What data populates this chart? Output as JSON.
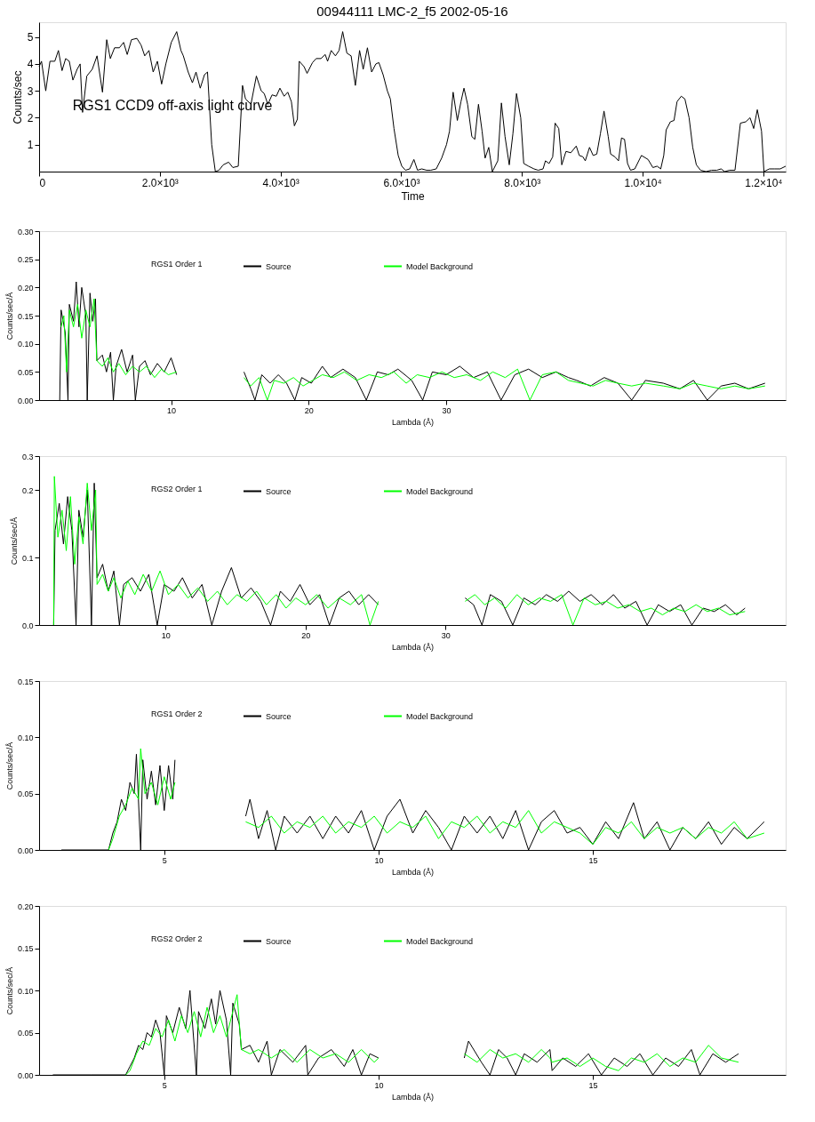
{
  "chart_data": [
    {
      "type": "line",
      "title": "00944111 LMC-2_f5 2002-05-16",
      "xlabel": "Time",
      "ylabel": "Counts/sec",
      "annotations": [
        "RGS1 CCD9 off-axis light curve"
      ],
      "xlim": [
        0,
        12370
      ],
      "ylim": [
        0,
        5.55
      ],
      "xticks": [
        0,
        {
          "value": 2000,
          "label": "2.0×10³"
        },
        {
          "value": 4000,
          "label": "4.0×10³"
        },
        {
          "value": 6000,
          "label": "6.0×10³"
        },
        {
          "value": 8000,
          "label": "8.0×10³"
        },
        {
          "value": 10000,
          "label": "1.0×10⁴"
        },
        {
          "value": 12000,
          "label": "1.2×10⁴"
        }
      ],
      "yticks": [
        1,
        2,
        3,
        4,
        5
      ],
      "grid": false,
      "line_style": "solid",
      "marker": "none",
      "series": [
        {
          "color": "#000000",
          "x": [
            0,
            40,
            110,
            180,
            260,
            320,
            380,
            440,
            500,
            560,
            630,
            680,
            720,
            790,
            880,
            960,
            1050,
            1120,
            1180,
            1250,
            1330,
            1400,
            1460,
            1530,
            1620,
            1690,
            1750,
            1820,
            1890,
            1960,
            2030,
            2100,
            2190,
            2280,
            2350,
            2390,
            2470,
            2540,
            2600,
            2670,
            2740,
            2790,
            2860,
            2920,
            2980,
            3050,
            3140,
            3210,
            3300,
            3370,
            3420,
            3510,
            3600,
            3680,
            3730,
            3790,
            3860,
            3930,
            3990,
            4060,
            4120,
            4180,
            4230,
            4280,
            4310,
            4390,
            4440,
            4530,
            4590,
            4670,
            4740,
            4780,
            4840,
            4910,
            4970,
            5030,
            5100,
            5170,
            5240,
            5310,
            5370,
            5440,
            5510,
            5580,
            5630,
            5700,
            5770,
            5820,
            5880,
            5950,
            6010,
            6070,
            6140,
            6210,
            6270,
            6340,
            6420,
            6490,
            6580,
            6670,
            6750,
            6800,
            6860,
            6930,
            6990,
            7040,
            7100,
            7170,
            7220,
            7280,
            7340,
            7390,
            7450,
            7510,
            7600,
            7660,
            7720,
            7790,
            7850,
            7910,
            7980,
            8030,
            8110,
            8200,
            8270,
            8350,
            8390,
            8450,
            8510,
            8550,
            8610,
            8660,
            8730,
            8810,
            8900,
            8950,
            9010,
            9050,
            9120,
            9180,
            9240,
            9300,
            9360,
            9430,
            9470,
            9540,
            9600,
            9650,
            9700,
            9750,
            9800,
            9870,
            9980,
            10090,
            10170,
            10240,
            10300,
            10350,
            10390,
            10460,
            10520,
            10570,
            10640,
            10700,
            10770,
            10830,
            10890,
            10960,
            11050,
            11140,
            11230,
            11300,
            11360,
            11440,
            11530,
            11620,
            11710,
            11780,
            11840,
            11900,
            11970,
            12010,
            12100,
            12190,
            12280,
            12370
          ],
          "values": [
            3.9,
            4.1,
            3.0,
            4.1,
            4.1,
            4.5,
            3.75,
            4.2,
            4.1,
            3.4,
            3.8,
            4.0,
            2.2,
            3.55,
            3.8,
            4.3,
            2.95,
            4.9,
            4.2,
            4.6,
            4.6,
            4.8,
            4.35,
            4.9,
            4.95,
            4.7,
            4.3,
            4.5,
            3.7,
            4.1,
            3.25,
            4.0,
            4.8,
            5.2,
            4.5,
            4.3,
            3.7,
            3.3,
            3.7,
            3.1,
            3.6,
            3.7,
            1.0,
            0.0,
            0.05,
            0.25,
            0.35,
            0.15,
            0.2,
            3.2,
            2.7,
            2.5,
            3.55,
            3.0,
            2.9,
            2.5,
            2.85,
            2.8,
            3.1,
            2.8,
            2.95,
            2.6,
            1.7,
            1.95,
            4.1,
            3.9,
            3.65,
            4.05,
            4.2,
            4.2,
            4.35,
            4.1,
            4.5,
            4.3,
            4.5,
            5.2,
            4.4,
            4.3,
            3.2,
            4.5,
            3.8,
            4.6,
            3.7,
            4.0,
            4.05,
            3.6,
            3.0,
            2.7,
            1.6,
            0.6,
            0.2,
            0.05,
            0.1,
            0.45,
            0.05,
            0.1,
            0.05,
            0.05,
            0.1,
            0.5,
            1.0,
            1.5,
            2.95,
            1.9,
            2.6,
            3.1,
            2.5,
            1.3,
            1.2,
            2.5,
            1.5,
            0.5,
            0.9,
            0.0,
            0.4,
            2.55,
            1.3,
            0.25,
            1.4,
            2.9,
            2.0,
            0.3,
            0.2,
            0.1,
            0.05,
            0.1,
            0.4,
            0.3,
            0.55,
            1.8,
            1.6,
            0.25,
            0.75,
            0.7,
            0.95,
            0.6,
            0.55,
            0.4,
            0.9,
            0.6,
            0.65,
            1.4,
            2.25,
            1.3,
            0.65,
            0.55,
            0.4,
            1.25,
            1.2,
            0.3,
            0.05,
            0.1,
            0.6,
            0.45,
            0.15,
            0.2,
            0.1,
            0.6,
            1.55,
            1.85,
            1.9,
            2.6,
            2.8,
            2.7,
            2.0,
            0.9,
            0.25,
            0.05,
            0.0,
            0.05,
            0.05,
            0.1,
            0.0,
            0.05,
            0.05,
            1.8,
            1.85,
            2.0,
            1.6,
            2.3,
            1.5,
            0.0,
            0.1,
            0.1,
            0.1,
            0.2
          ]
        }
      ]
    },
    {
      "type": "line",
      "legend_title": "RGS1 Order 1",
      "xlabel": "Lambda (Å)",
      "ylabel": "Counts/sec/Å",
      "legend": "top",
      "xlim": [
        0.4,
        54.7
      ],
      "ylim": [
        0,
        0.3
      ],
      "xticks": [
        10,
        20,
        30
      ],
      "yticks": [
        {
          "value": 0,
          "label": "0.00"
        },
        {
          "value": 0.05,
          "label": "0.05"
        },
        {
          "value": 0.1,
          "label": "0.10"
        },
        {
          "value": 0.15,
          "label": "0.15"
        },
        {
          "value": 0.2,
          "label": "0.20"
        },
        {
          "value": 0.25,
          "label": "0.25"
        },
        {
          "value": 0.3,
          "label": "0.30"
        }
      ],
      "grid": false,
      "series": [
        {
          "name": "Source",
          "color": "#000000",
          "x": [
            1.9,
            2.0,
            2.3,
            2.5,
            2.6,
            2.9,
            3.1,
            3.3,
            3.5,
            3.8,
            3.9,
            4.1,
            4.3,
            4.5,
            4.6,
            5.0,
            5.3,
            5.6,
            5.8,
            6.0,
            6.4,
            6.8,
            7.2,
            7.4,
            7.7,
            8.1,
            8.5,
            9.0,
            9.5,
            10.0,
            10.4,
            10.5,
            15.3,
            15.8,
            16.1,
            16.6,
            17.2,
            17.8,
            18.4,
            19.0,
            19.5,
            20.2,
            21.0,
            21.6,
            22.5,
            23.4,
            24.2,
            25.0,
            25.8,
            26.5,
            27.5,
            28.3,
            29.0,
            30.0,
            31.0,
            32.0,
            33.0,
            34.0,
            35.0,
            36.0,
            37.0,
            38.0,
            38.9,
            39.5,
            40.5,
            41.5,
            42.5,
            43.5,
            44.5,
            45.8,
            47.0,
            48.0,
            49.0,
            50.0,
            51.0,
            52.0,
            53.2
          ],
          "values": [
            0,
            0.16,
            0.12,
            0.0,
            0.17,
            0.14,
            0.21,
            0.13,
            0.2,
            0.15,
            0.0,
            0.19,
            0.14,
            0.18,
            0.07,
            0.08,
            0.05,
            0.085,
            0.0,
            0.06,
            0.09,
            0.05,
            0.08,
            0.0,
            0.06,
            0.07,
            0.045,
            0.065,
            0.05,
            0.075,
            0.045,
            null,
            0.05,
            0.02,
            0.0,
            0.045,
            0.03,
            0.045,
            0.03,
            0.0,
            0.04,
            0.03,
            0.06,
            0.04,
            0.055,
            0.04,
            0.0,
            0.05,
            0.045,
            0.055,
            0.035,
            0.0,
            0.05,
            0.045,
            0.06,
            0.04,
            0.05,
            0.0,
            0.045,
            0.055,
            0.04,
            0.05,
            0.04,
            0.035,
            0.025,
            0.04,
            0.03,
            0.0,
            0.035,
            0.03,
            0.02,
            0.035,
            0.0,
            0.025,
            0.03,
            0.02,
            0.03
          ]
        },
        {
          "name": "Model Background",
          "color": "#00ff00",
          "x": [
            2.0,
            2.2,
            2.4,
            2.6,
            2.9,
            3.2,
            3.5,
            3.8,
            4.1,
            4.4,
            4.6,
            5.0,
            5.4,
            5.8,
            6.2,
            6.7,
            7.2,
            7.7,
            8.2,
            8.8,
            9.3,
            9.8,
            10.4,
            10.5,
            15.3,
            15.8,
            16.4,
            17.0,
            17.5,
            18.2,
            18.9,
            19.6,
            20.3,
            21.0,
            21.8,
            22.6,
            23.5,
            24.4,
            25.3,
            26.2,
            27.1,
            27.9,
            28.8,
            29.7,
            30.6,
            31.5,
            32.5,
            33.4,
            34.3,
            35.2,
            36.1,
            37.0,
            38.0,
            38.9,
            39.8,
            40.7,
            41.6,
            42.5,
            43.5,
            44.5,
            45.8,
            47.0,
            48.0,
            49.0,
            50.0,
            51.0,
            52.0,
            53.2
          ],
          "values": [
            0.13,
            0.15,
            0.05,
            0.16,
            0.13,
            0.17,
            0.11,
            0.16,
            0.13,
            0.18,
            0.07,
            0.06,
            0.075,
            0.05,
            0.065,
            0.045,
            0.06,
            0.05,
            0.06,
            0.04,
            0.055,
            0.045,
            0.05,
            null,
            0.04,
            0.025,
            0.04,
            0.0,
            0.035,
            0.03,
            0.04,
            0.025,
            0.035,
            0.045,
            0.04,
            0.05,
            0.035,
            0.045,
            0.04,
            0.05,
            0.03,
            0.045,
            0.04,
            0.05,
            0.04,
            0.045,
            0.035,
            0.05,
            0.04,
            0.055,
            0.0,
            0.045,
            0.05,
            0.035,
            0.03,
            0.025,
            0.035,
            0.03,
            0.025,
            0.03,
            0.025,
            0.02,
            0.03,
            0.025,
            0.02,
            0.025,
            0.02,
            0.025
          ]
        }
      ]
    },
    {
      "type": "line",
      "legend_title": "RGS2 Order 1",
      "xlabel": "Lambda (Å)",
      "ylabel": "Counts/sec/Å",
      "legend": "top",
      "xlim": [
        0.96,
        54.3
      ],
      "ylim": [
        0,
        0.25
      ],
      "xticks": [
        10,
        20,
        30
      ],
      "yticks": [
        {
          "value": 0,
          "label": "0.0"
        },
        {
          "value": 0.1,
          "label": "0.1"
        },
        {
          "value": 0.2,
          "label": "0.2"
        },
        {
          "value": 0.25,
          "label": "0.3"
        }
      ],
      "grid": false,
      "series": [
        {
          "name": "Source",
          "color": "#000000",
          "x": [
            2.0,
            2.1,
            2.4,
            2.7,
            3.0,
            3.3,
            3.6,
            3.8,
            4.1,
            4.4,
            4.7,
            4.9,
            5.1,
            5.5,
            5.9,
            6.3,
            6.7,
            7.0,
            7.6,
            8.2,
            8.8,
            9.4,
            9.9,
            10.6,
            11.2,
            11.9,
            12.6,
            13.3,
            14.0,
            14.7,
            15.4,
            16.1,
            16.8,
            17.5,
            18.2,
            18.9,
            19.6,
            20.3,
            21.0,
            21.7,
            22.4,
            23.1,
            23.8,
            24.5,
            25.2,
            25.3,
            31.4,
            32.0,
            32.6,
            33.2,
            34.0,
            34.8,
            35.6,
            36.4,
            37.2,
            38.0,
            38.8,
            39.6,
            40.4,
            41.2,
            42.0,
            42.8,
            43.6,
            44.4,
            45.2,
            46.0,
            46.8,
            47.6,
            48.4,
            49.2,
            50.0,
            50.8,
            51.4
          ],
          "values": [
            0.0,
            0.14,
            0.18,
            0.12,
            0.19,
            0.14,
            0.0,
            0.17,
            0.13,
            0.2,
            0.0,
            0.21,
            0.07,
            0.09,
            0.05,
            0.08,
            0.0,
            0.06,
            0.07,
            0.05,
            0.075,
            0.0,
            0.06,
            0.05,
            0.07,
            0.04,
            0.06,
            0.0,
            0.05,
            0.085,
            0.04,
            0.055,
            0.035,
            0.0,
            0.05,
            0.035,
            0.06,
            0.03,
            0.045,
            0.0,
            0.04,
            0.05,
            0.03,
            0.045,
            0.03,
            null,
            0.04,
            0.03,
            0.0,
            0.045,
            0.035,
            0.0,
            0.04,
            0.03,
            0.045,
            0.035,
            0.05,
            0.035,
            0.045,
            0.03,
            0.045,
            0.025,
            0.035,
            0.0,
            0.03,
            0.02,
            0.03,
            0.0,
            0.025,
            0.02,
            0.03,
            0.015,
            0.025
          ]
        },
        {
          "name": "Model Background",
          "color": "#00ff00",
          "x": [
            2.0,
            2.05,
            2.3,
            2.6,
            2.9,
            3.2,
            3.5,
            3.8,
            4.1,
            4.4,
            4.7,
            5.0,
            5.1,
            5.5,
            5.9,
            6.3,
            6.8,
            7.3,
            7.8,
            8.4,
            9.0,
            9.6,
            10.2,
            10.9,
            11.6,
            12.3,
            13.0,
            13.7,
            14.4,
            15.1,
            15.8,
            16.5,
            17.2,
            17.9,
            18.6,
            19.3,
            20.0,
            20.8,
            21.6,
            22.4,
            23.2,
            24.0,
            24.6,
            25.2,
            25.3,
            31.4,
            32.1,
            32.8,
            33.5,
            34.3,
            35.1,
            35.9,
            36.7,
            37.5,
            38.3,
            39.1,
            39.9,
            40.7,
            41.5,
            42.3,
            43.1,
            43.9,
            44.7,
            45.5,
            46.3,
            47.1,
            47.9,
            48.7,
            49.5,
            50.3,
            51.4
          ],
          "values": [
            0.0,
            0.22,
            0.13,
            0.17,
            0.11,
            0.19,
            0.09,
            0.16,
            0.12,
            0.21,
            0.14,
            0.2,
            0.06,
            0.075,
            0.05,
            0.07,
            0.04,
            0.065,
            0.045,
            0.075,
            0.05,
            0.08,
            0.045,
            0.06,
            0.04,
            0.055,
            0.035,
            0.05,
            0.03,
            0.045,
            0.035,
            0.05,
            0.03,
            0.045,
            0.025,
            0.04,
            0.03,
            0.045,
            0.025,
            0.04,
            0.03,
            0.045,
            0.0,
            0.035,
            null,
            0.035,
            0.045,
            0.03,
            0.04,
            0.025,
            0.045,
            0.03,
            0.04,
            0.035,
            0.045,
            0.0,
            0.04,
            0.03,
            0.035,
            0.025,
            0.03,
            0.02,
            0.025,
            0.015,
            0.025,
            0.02,
            0.03,
            0.02,
            0.025,
            0.015,
            0.02
          ]
        }
      ]
    },
    {
      "type": "line",
      "legend_title": "RGS1 Order 2",
      "xlabel": "Lambda (Å)",
      "ylabel": "Counts/sec/Å",
      "legend": "top",
      "xlim": [
        2.08,
        19.5
      ],
      "ylim": [
        0,
        0.15
      ],
      "xticks": [
        5,
        10,
        15
      ],
      "yticks": [
        {
          "value": 0,
          "label": "0.00"
        },
        {
          "value": 0.05,
          "label": "0.05"
        },
        {
          "value": 0.1,
          "label": "0.10"
        },
        {
          "value": 0.15,
          "label": "0.15"
        }
      ],
      "grid": false,
      "series": [
        {
          "name": "Source",
          "color": "#000000",
          "x": [
            2.6,
            3.2,
            3.7,
            3.8,
            3.9,
            4.0,
            4.1,
            4.2,
            4.3,
            4.35,
            4.45,
            4.5,
            4.6,
            4.7,
            4.8,
            4.9,
            5.0,
            5.1,
            5.2,
            5.25,
            5.26,
            6.9,
            7.0,
            7.2,
            7.4,
            7.6,
            7.8,
            8.1,
            8.4,
            8.7,
            9.0,
            9.3,
            9.6,
            9.9,
            10.2,
            10.5,
            10.8,
            11.1,
            11.4,
            11.7,
            12.0,
            12.3,
            12.6,
            12.9,
            13.2,
            13.5,
            13.8,
            14.1,
            14.4,
            14.7,
            15.0,
            15.3,
            15.6,
            15.95,
            16.2,
            16.5,
            16.8,
            17.1,
            17.4,
            17.7,
            18.0,
            18.3,
            18.6,
            19.0
          ],
          "values": [
            0,
            0,
            0,
            0.015,
            0.025,
            0.045,
            0.035,
            0.06,
            0.05,
            0.085,
            0.0,
            0.08,
            0.045,
            0.07,
            0.04,
            0.075,
            0.035,
            0.075,
            0.045,
            0.08,
            null,
            0.03,
            0.045,
            0.01,
            0.035,
            0.0,
            0.03,
            0.015,
            0.03,
            0.01,
            0.03,
            0.015,
            0.035,
            0.0,
            0.03,
            0.045,
            0.015,
            0.035,
            0.02,
            0.0,
            0.03,
            0.015,
            0.03,
            0.01,
            0.035,
            0.0,
            0.025,
            0.035,
            0.015,
            0.02,
            0.005,
            0.025,
            0.01,
            0.042,
            0.01,
            0.025,
            0.0,
            0.02,
            0.01,
            0.025,
            0.005,
            0.02,
            0.01,
            0.025
          ]
        },
        {
          "name": "Model Background",
          "color": "#00ff00",
          "x": [
            3.7,
            3.8,
            3.95,
            4.1,
            4.25,
            4.4,
            4.45,
            4.55,
            4.7,
            4.85,
            5.0,
            5.15,
            5.25,
            5.26,
            6.9,
            7.2,
            7.5,
            7.8,
            8.1,
            8.4,
            8.7,
            9.0,
            9.3,
            9.6,
            9.9,
            10.2,
            10.5,
            10.8,
            11.1,
            11.4,
            11.7,
            12.0,
            12.3,
            12.6,
            12.9,
            13.2,
            13.5,
            13.8,
            14.1,
            14.4,
            14.7,
            15.0,
            15.3,
            15.6,
            15.9,
            16.2,
            16.5,
            16.8,
            17.1,
            17.4,
            17.7,
            18.0,
            18.3,
            18.6,
            19.0
          ],
          "values": [
            0,
            0.01,
            0.03,
            0.04,
            0.055,
            0.045,
            0.09,
            0.05,
            0.06,
            0.04,
            0.065,
            0.045,
            0.06,
            null,
            0.025,
            0.02,
            0.03,
            0.015,
            0.025,
            0.02,
            0.03,
            0.015,
            0.025,
            0.02,
            0.03,
            0.015,
            0.025,
            0.02,
            0.03,
            0.01,
            0.025,
            0.02,
            0.03,
            0.015,
            0.025,
            0.02,
            0.035,
            0.015,
            0.025,
            0.02,
            0.015,
            0.005,
            0.02,
            0.015,
            0.025,
            0.01,
            0.02,
            0.015,
            0.02,
            0.01,
            0.02,
            0.015,
            0.025,
            0.01,
            0.015
          ]
        }
      ]
    },
    {
      "type": "line",
      "legend_title": "RGS2 Order 2",
      "xlabel": "Lambda (Å)",
      "ylabel": "Counts/sec/Å",
      "legend": "top",
      "xlim": [
        2.08,
        19.5
      ],
      "ylim": [
        0,
        0.2
      ],
      "xticks": [
        5,
        10,
        15
      ],
      "yticks": [
        {
          "value": 0,
          "label": "0.00"
        },
        {
          "value": 0.05,
          "label": "0.05"
        },
        {
          "value": 0.1,
          "label": "0.10"
        },
        {
          "value": 0.15,
          "label": "0.15"
        },
        {
          "value": 0.2,
          "label": "0.20"
        }
      ],
      "grid": false,
      "series": [
        {
          "name": "Source",
          "color": "#000000",
          "x": [
            2.4,
            3.3,
            4.1,
            4.2,
            4.3,
            4.4,
            4.5,
            4.6,
            4.7,
            4.8,
            4.9,
            5.0,
            5.05,
            5.2,
            5.35,
            5.5,
            5.6,
            5.75,
            5.8,
            5.95,
            6.1,
            6.2,
            6.3,
            6.45,
            6.55,
            6.6,
            6.75,
            6.8,
            7.0,
            7.2,
            7.4,
            7.5,
            7.7,
            8.0,
            8.3,
            8.35,
            8.6,
            8.9,
            9.2,
            9.4,
            9.6,
            9.8,
            10.0,
            10.01,
            12.0,
            12.1,
            12.4,
            12.6,
            12.8,
            13.0,
            13.2,
            13.4,
            13.7,
            14.0,
            14.05,
            14.3,
            14.6,
            14.9,
            15.2,
            15.5,
            15.8,
            16.1,
            16.4,
            16.7,
            17.0,
            17.3,
            17.5,
            17.8,
            18.1,
            18.4
          ],
          "values": [
            0,
            0,
            0,
            0.01,
            0.02,
            0.035,
            0.03,
            0.05,
            0.045,
            0.065,
            0.05,
            0.0,
            0.07,
            0.05,
            0.08,
            0.055,
            0.1,
            0.0,
            0.075,
            0.055,
            0.09,
            0.06,
            0.1,
            0.065,
            0.0,
            0.085,
            0.06,
            0.03,
            0.035,
            0.015,
            0.04,
            0.0,
            0.03,
            0.015,
            0.035,
            0.0,
            0.02,
            0.03,
            0.01,
            0.03,
            0.0,
            0.025,
            0.02,
            null,
            0.02,
            0.04,
            0.015,
            0.0,
            0.03,
            0.02,
            0.0,
            0.025,
            0.015,
            0.03,
            0.005,
            0.02,
            0.01,
            0.025,
            0.0,
            0.02,
            0.01,
            0.025,
            0.0,
            0.02,
            0.01,
            0.03,
            0.0,
            0.025,
            0.015,
            0.025
          ]
        },
        {
          "name": "Model Background",
          "color": "#00ff00",
          "x": [
            4.1,
            4.2,
            4.35,
            4.5,
            4.65,
            4.8,
            4.95,
            5.1,
            5.25,
            5.4,
            5.55,
            5.7,
            5.85,
            6.0,
            6.15,
            6.3,
            6.45,
            6.6,
            6.7,
            6.8,
            7.0,
            7.2,
            7.5,
            7.8,
            8.1,
            8.4,
            8.7,
            9.0,
            9.3,
            9.6,
            9.9,
            10.0,
            10.01,
            12.0,
            12.3,
            12.6,
            12.9,
            13.2,
            13.5,
            13.8,
            14.0,
            14.05,
            14.4,
            14.7,
            15.0,
            15.3,
            15.6,
            15.9,
            16.2,
            16.5,
            16.8,
            17.1,
            17.4,
            17.7,
            18.0,
            18.4
          ],
          "values": [
            0,
            0.005,
            0.025,
            0.04,
            0.035,
            0.055,
            0.045,
            0.065,
            0.04,
            0.07,
            0.05,
            0.075,
            0.045,
            0.08,
            0.05,
            0.07,
            0.045,
            0.075,
            0.095,
            0.03,
            0.025,
            0.03,
            0.02,
            0.03,
            0.015,
            0.03,
            0.02,
            0.025,
            0.015,
            0.03,
            0.015,
            0.02,
            null,
            0.025,
            0.015,
            0.03,
            0.02,
            0.025,
            0.015,
            0.03,
            0.02,
            0.015,
            0.02,
            0.01,
            0.02,
            0.01,
            0.005,
            0.02,
            0.015,
            0.025,
            0.01,
            0.02,
            0.015,
            0.035,
            0.02,
            0.015
          ]
        }
      ]
    }
  ]
}
